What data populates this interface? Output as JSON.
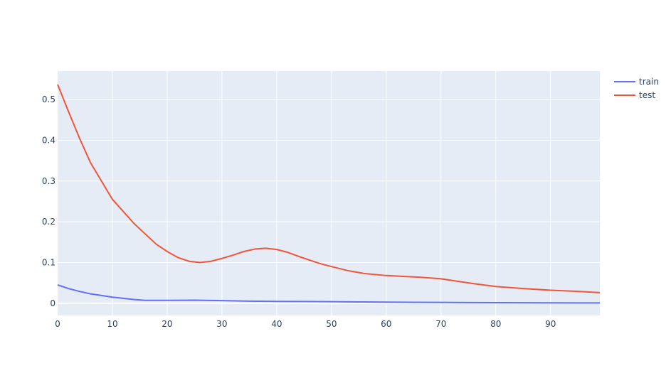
{
  "chart_data": {
    "type": "line",
    "title": "",
    "xlabel": "",
    "ylabel": "",
    "xlim": [
      0,
      99
    ],
    "ylim": [
      -0.03,
      0.57
    ],
    "x_ticks": [
      0,
      10,
      20,
      30,
      40,
      50,
      60,
      70,
      80,
      90
    ],
    "y_ticks": [
      0,
      0.1,
      0.2,
      0.3,
      0.4,
      0.5
    ],
    "y_tick_labels": [
      "0",
      "0.1",
      "0.2",
      "0.3",
      "0.4",
      "0.5"
    ],
    "grid": true,
    "legend_position": "top-right",
    "background_color": "#E5ECF6",
    "grid_color": "#ffffff",
    "series": [
      {
        "name": "train",
        "color": "#636EFA",
        "x": [
          0,
          2,
          4,
          6,
          8,
          10,
          12,
          14,
          16,
          18,
          20,
          25,
          30,
          35,
          40,
          45,
          50,
          55,
          60,
          65,
          70,
          75,
          80,
          85,
          90,
          95,
          99
        ],
        "y": [
          0.045,
          0.036,
          0.029,
          0.023,
          0.019,
          0.015,
          0.012,
          0.009,
          0.007,
          0.007,
          0.007,
          0.0075,
          0.0065,
          0.005,
          0.0045,
          0.0042,
          0.0038,
          0.0032,
          0.0028,
          0.0023,
          0.002,
          0.0017,
          0.0014,
          0.0012,
          0.001,
          0.0008,
          0.0007
        ]
      },
      {
        "name": "test",
        "color": "#EF553B",
        "x": [
          0,
          2,
          4,
          6,
          8,
          10,
          12,
          14,
          16,
          18,
          20,
          22,
          24,
          26,
          28,
          30,
          32,
          34,
          36,
          38,
          40,
          42,
          44,
          46,
          48,
          50,
          53,
          56,
          60,
          63,
          66,
          70,
          73,
          76,
          80,
          85,
          90,
          95,
          99
        ],
        "y": [
          0.537,
          0.47,
          0.405,
          0.345,
          0.3,
          0.255,
          0.225,
          0.195,
          0.17,
          0.145,
          0.127,
          0.112,
          0.103,
          0.1,
          0.103,
          0.11,
          0.118,
          0.127,
          0.133,
          0.135,
          0.132,
          0.125,
          0.115,
          0.106,
          0.097,
          0.09,
          0.08,
          0.073,
          0.068,
          0.066,
          0.064,
          0.06,
          0.054,
          0.048,
          0.041,
          0.036,
          0.032,
          0.029,
          0.026
        ]
      }
    ]
  }
}
